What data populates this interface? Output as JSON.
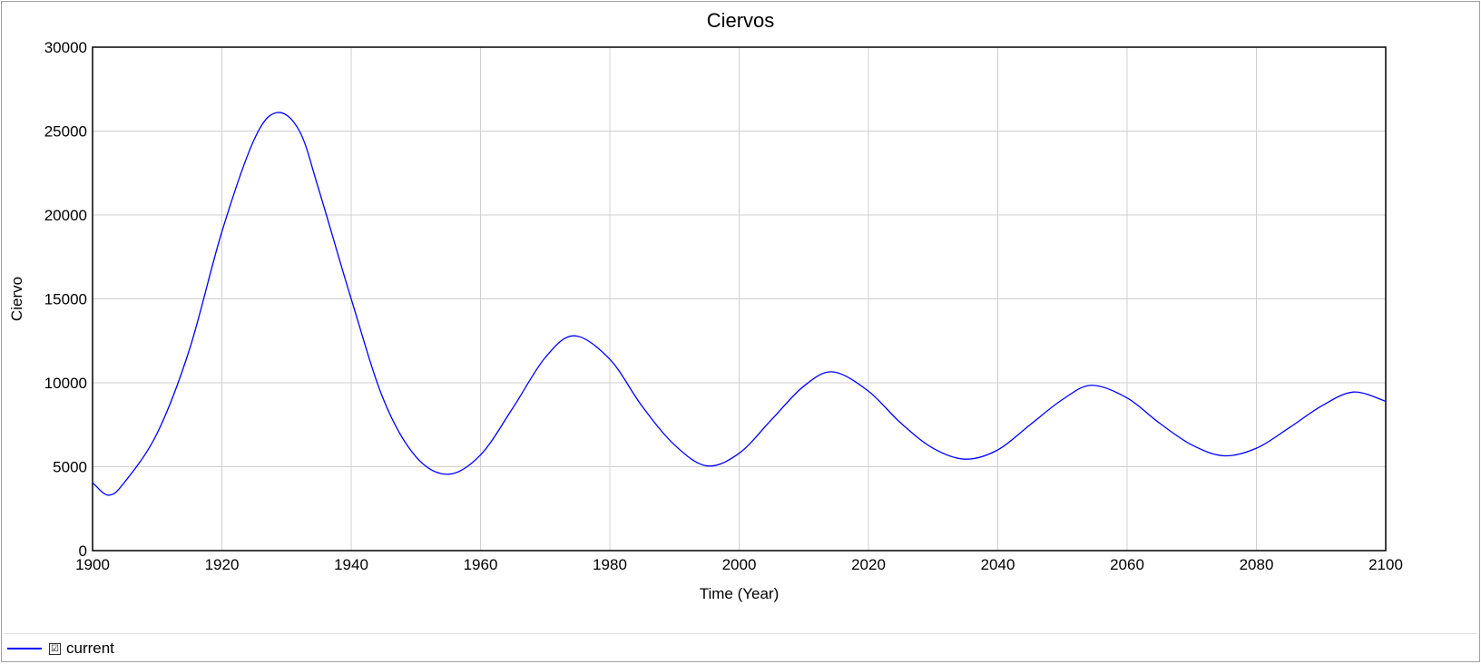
{
  "chart_data": {
    "type": "line",
    "title": "Ciervos",
    "xlabel": "Time (Year)",
    "ylabel": "Ciervo",
    "xlim": [
      1900,
      2100
    ],
    "ylim": [
      0,
      30000
    ],
    "x_ticks": [
      "1900",
      "1920",
      "1940",
      "1960",
      "1980",
      "2000",
      "2020",
      "2040",
      "2060",
      "2080",
      "2100"
    ],
    "y_ticks": [
      "0",
      "5000",
      "10000",
      "15000",
      "20000",
      "25000",
      "30000"
    ],
    "grid": true,
    "legend_position": "bottom-left",
    "series": [
      {
        "name": "current",
        "color": "#0000ff",
        "x": [
          1900,
          1902.5,
          1905,
          1910,
          1915,
          1920,
          1925,
          1928.5,
          1932,
          1935,
          1940,
          1945,
          1950,
          1955,
          1960,
          1965,
          1970,
          1974.5,
          1980,
          1985,
          1990,
          1995,
          2000,
          2005,
          2010,
          2014.5,
          2020,
          2025,
          2030,
          2035,
          2040,
          2045,
          2050,
          2054.5,
          2060,
          2065,
          2070,
          2075,
          2080,
          2085,
          2090,
          2095,
          2100
        ],
        "y": [
          4050,
          3300,
          4100,
          7000,
          12000,
          19000,
          24500,
          26100,
          25000,
          21500,
          15000,
          9000,
          5600,
          4550,
          5700,
          8500,
          11500,
          12800,
          11400,
          8600,
          6300,
          5050,
          5800,
          7800,
          9800,
          10650,
          9500,
          7600,
          6100,
          5450,
          6000,
          7500,
          9000,
          9850,
          9100,
          7600,
          6300,
          5650,
          6100,
          7300,
          8600,
          9450,
          8900
        ]
      }
    ]
  },
  "legend": {
    "label": "current",
    "checkbox": "☑"
  },
  "colors": {
    "line": "#0000ff",
    "grid": "#d0d0d0",
    "axis": "#000000"
  }
}
